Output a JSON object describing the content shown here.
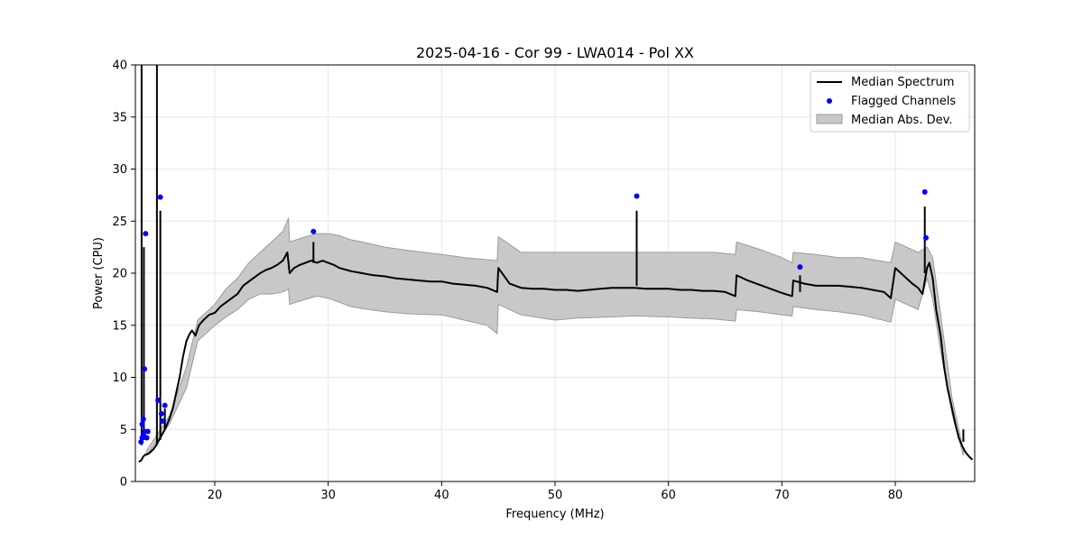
{
  "chart_data": {
    "type": "line",
    "title": "2025-04-16 - Cor 99 - LWA014 - Pol XX",
    "xlabel": "Frequency (MHz)",
    "ylabel": "Power (CPU)",
    "xlim": [
      13,
      87
    ],
    "ylim": [
      0,
      40
    ],
    "xticks": [
      20,
      30,
      40,
      50,
      60,
      70,
      80
    ],
    "yticks": [
      0,
      5,
      10,
      15,
      20,
      25,
      30,
      35,
      40
    ],
    "grid": true,
    "legend_position": "top-right",
    "colors": {
      "median": "#000000",
      "flagged": "#0000ff",
      "band_fill": "#c8c8c8",
      "band_edge": "#9a9a9a"
    },
    "series": [
      {
        "name": "Median Spectrum",
        "kind": "line",
        "x": [
          13.3,
          13.5,
          13.6,
          13.7,
          13.8,
          13.9,
          14.0,
          14.2,
          14.4,
          14.6,
          14.8,
          15.0,
          15.2,
          15.4,
          15.6,
          15.8,
          16.0,
          16.3,
          16.6,
          16.9,
          17.2,
          17.5,
          17.8,
          18.0,
          18.3,
          18.6,
          19.0,
          19.5,
          20.0,
          20.5,
          21.0,
          21.5,
          22.0,
          22.5,
          23.0,
          23.5,
          24.0,
          24.5,
          25.0,
          25.5,
          26.0,
          26.4,
          26.6,
          27.0,
          27.5,
          28.0,
          28.5,
          29.0,
          29.5,
          30.0,
          30.5,
          31.0,
          32.0,
          33.0,
          34.0,
          35.0,
          36.0,
          37.0,
          38.0,
          39.0,
          40.0,
          41.0,
          42.0,
          43.0,
          44.0,
          44.9,
          45.0,
          46.0,
          47.0,
          48.0,
          49.0,
          50.0,
          51.0,
          52.0,
          53.0,
          54.0,
          55.0,
          56.0,
          57.0,
          58.0,
          59.0,
          60.0,
          61.0,
          62.0,
          63.0,
          64.0,
          65.0,
          65.9,
          66.0,
          67.0,
          68.0,
          69.0,
          70.0,
          70.9,
          71.0,
          72.0,
          73.0,
          74.0,
          75.0,
          76.0,
          77.0,
          78.0,
          79.0,
          79.6,
          80.0,
          80.5,
          81.0,
          81.5,
          82.0,
          82.4,
          82.8,
          83.0,
          83.3,
          83.6,
          84.0,
          84.3,
          84.6,
          85.0,
          85.3,
          85.6,
          85.9,
          86.2,
          86.5,
          86.8
        ],
        "y": [
          1.9,
          2.0,
          2.2,
          2.4,
          2.5,
          2.6,
          2.6,
          2.7,
          2.9,
          3.1,
          3.4,
          3.8,
          4.2,
          4.6,
          5.0,
          5.5,
          6.0,
          7.0,
          8.5,
          10.0,
          12.0,
          13.5,
          14.2,
          14.5,
          14.0,
          15.0,
          15.5,
          16.0,
          16.2,
          16.8,
          17.2,
          17.6,
          18.0,
          18.8,
          19.2,
          19.6,
          20.0,
          20.3,
          20.5,
          20.8,
          21.2,
          22.0,
          20.0,
          20.5,
          20.8,
          21.0,
          21.2,
          21.0,
          21.2,
          21.0,
          20.8,
          20.5,
          20.2,
          20.0,
          19.8,
          19.7,
          19.5,
          19.4,
          19.3,
          19.2,
          19.2,
          19.0,
          18.9,
          18.8,
          18.6,
          18.2,
          20.5,
          19.0,
          18.6,
          18.5,
          18.5,
          18.4,
          18.4,
          18.3,
          18.4,
          18.5,
          18.6,
          18.6,
          18.6,
          18.5,
          18.5,
          18.5,
          18.4,
          18.4,
          18.3,
          18.3,
          18.2,
          17.8,
          19.8,
          19.3,
          18.9,
          18.5,
          18.1,
          17.8,
          19.3,
          19.0,
          18.8,
          18.8,
          18.8,
          18.7,
          18.6,
          18.4,
          18.2,
          17.6,
          20.5,
          20.0,
          19.5,
          19.0,
          18.6,
          18.0,
          20.5,
          21.0,
          19.5,
          16.5,
          14.0,
          11.0,
          9.0,
          7.0,
          5.5,
          4.2,
          3.4,
          2.8,
          2.4,
          2.1
        ]
      },
      {
        "name": "Flagged Channels",
        "kind": "scatter",
        "x": [
          13.5,
          13.6,
          13.7,
          13.8,
          13.9,
          13.6,
          13.7,
          13.8,
          14.0,
          14.1,
          15.0,
          15.2,
          15.3,
          15.4,
          15.6,
          28.7,
          57.2,
          71.6,
          82.6,
          82.7
        ],
        "y": [
          3.8,
          5.5,
          6.0,
          10.8,
          23.8,
          4.2,
          4.5,
          4.8,
          4.2,
          4.8,
          7.8,
          27.3,
          6.5,
          5.8,
          7.3,
          24.0,
          27.4,
          20.6,
          27.8,
          23.4
        ]
      },
      {
        "name": "Median Abs. Dev.",
        "kind": "band",
        "x": [
          14.0,
          16.0,
          17.5,
          18.5,
          20.0,
          21.0,
          22.0,
          23.0,
          24.0,
          25.0,
          26.0,
          26.5,
          26.6,
          28.0,
          29.0,
          30.0,
          31.0,
          32.0,
          33.0,
          35.0,
          37.0,
          40.0,
          42.0,
          44.0,
          44.9,
          45.0,
          47.0,
          50.0,
          52.0,
          55.0,
          57.0,
          60.0,
          62.0,
          64.0,
          65.9,
          66.0,
          68.0,
          70.0,
          70.9,
          71.0,
          73.0,
          75.0,
          77.0,
          79.6,
          80.0,
          81.0,
          82.0,
          82.8,
          83.3,
          84.0,
          85.0,
          86.0
        ],
        "upper": [
          3.0,
          6.3,
          11.0,
          15.5,
          17.0,
          18.5,
          19.5,
          21.0,
          22.0,
          23.0,
          24.0,
          25.3,
          23.0,
          23.5,
          23.8,
          23.8,
          23.6,
          23.2,
          23.0,
          22.5,
          22.2,
          21.8,
          21.5,
          21.3,
          21.2,
          23.5,
          22.0,
          22.0,
          22.0,
          22.0,
          22.0,
          22.0,
          22.0,
          22.0,
          21.8,
          23.0,
          22.3,
          21.5,
          21.0,
          22.0,
          21.8,
          21.5,
          21.5,
          21.0,
          23.0,
          22.5,
          22.0,
          22.5,
          21.5,
          16.0,
          8.0,
          3.0
        ],
        "lower": [
          2.5,
          5.5,
          9.0,
          13.5,
          15.0,
          15.8,
          16.5,
          17.5,
          18.0,
          18.0,
          18.2,
          18.5,
          17.0,
          17.5,
          17.8,
          17.6,
          17.2,
          16.8,
          16.6,
          16.3,
          16.1,
          16.0,
          15.5,
          15.0,
          14.2,
          17.0,
          16.0,
          15.5,
          15.7,
          15.8,
          15.9,
          15.8,
          15.7,
          15.6,
          15.4,
          16.5,
          16.3,
          16.0,
          15.9,
          16.8,
          16.5,
          16.3,
          16.0,
          15.3,
          17.5,
          17.0,
          16.5,
          19.5,
          17.5,
          12.5,
          6.5,
          2.5
        ]
      }
    ],
    "spikes": [
      {
        "x": 13.55,
        "from": 3.5,
        "to": 40
      },
      {
        "x": 13.75,
        "from": 4.0,
        "to": 22.5
      },
      {
        "x": 14.9,
        "from": 3.5,
        "to": 40
      },
      {
        "x": 15.2,
        "from": 4.0,
        "to": 26.0
      },
      {
        "x": 15.6,
        "from": 5.0,
        "to": 7.0
      },
      {
        "x": 28.7,
        "from": 21.0,
        "to": 23.0
      },
      {
        "x": 57.2,
        "from": 18.8,
        "to": 26.0
      },
      {
        "x": 71.6,
        "from": 18.2,
        "to": 19.8
      },
      {
        "x": 82.6,
        "from": 20.0,
        "to": 26.4
      },
      {
        "x": 86.0,
        "from": 3.8,
        "to": 5.0
      }
    ]
  }
}
